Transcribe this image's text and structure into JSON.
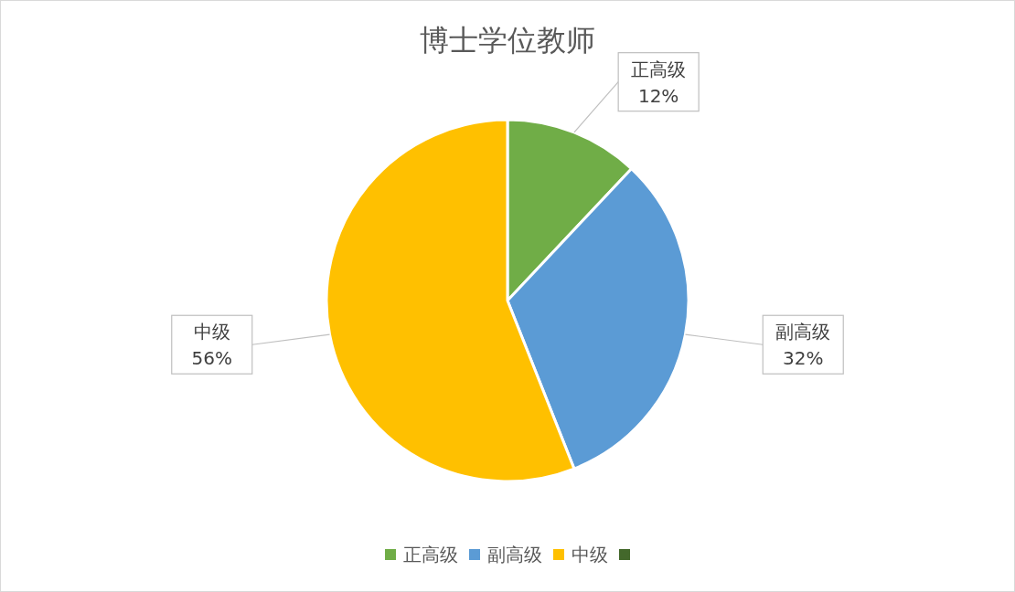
{
  "chart_data": {
    "type": "pie",
    "title": "博士学位教师",
    "categories": [
      "正高级",
      "副高级",
      "中级",
      null
    ],
    "values": [
      12,
      32,
      56,
      0
    ],
    "colors": [
      "#70ad47",
      "#5b9bd5",
      "#ffc000",
      "#43682b"
    ],
    "value_labels": [
      "12%",
      "32%",
      "56%",
      null
    ],
    "legend": "bottom"
  }
}
